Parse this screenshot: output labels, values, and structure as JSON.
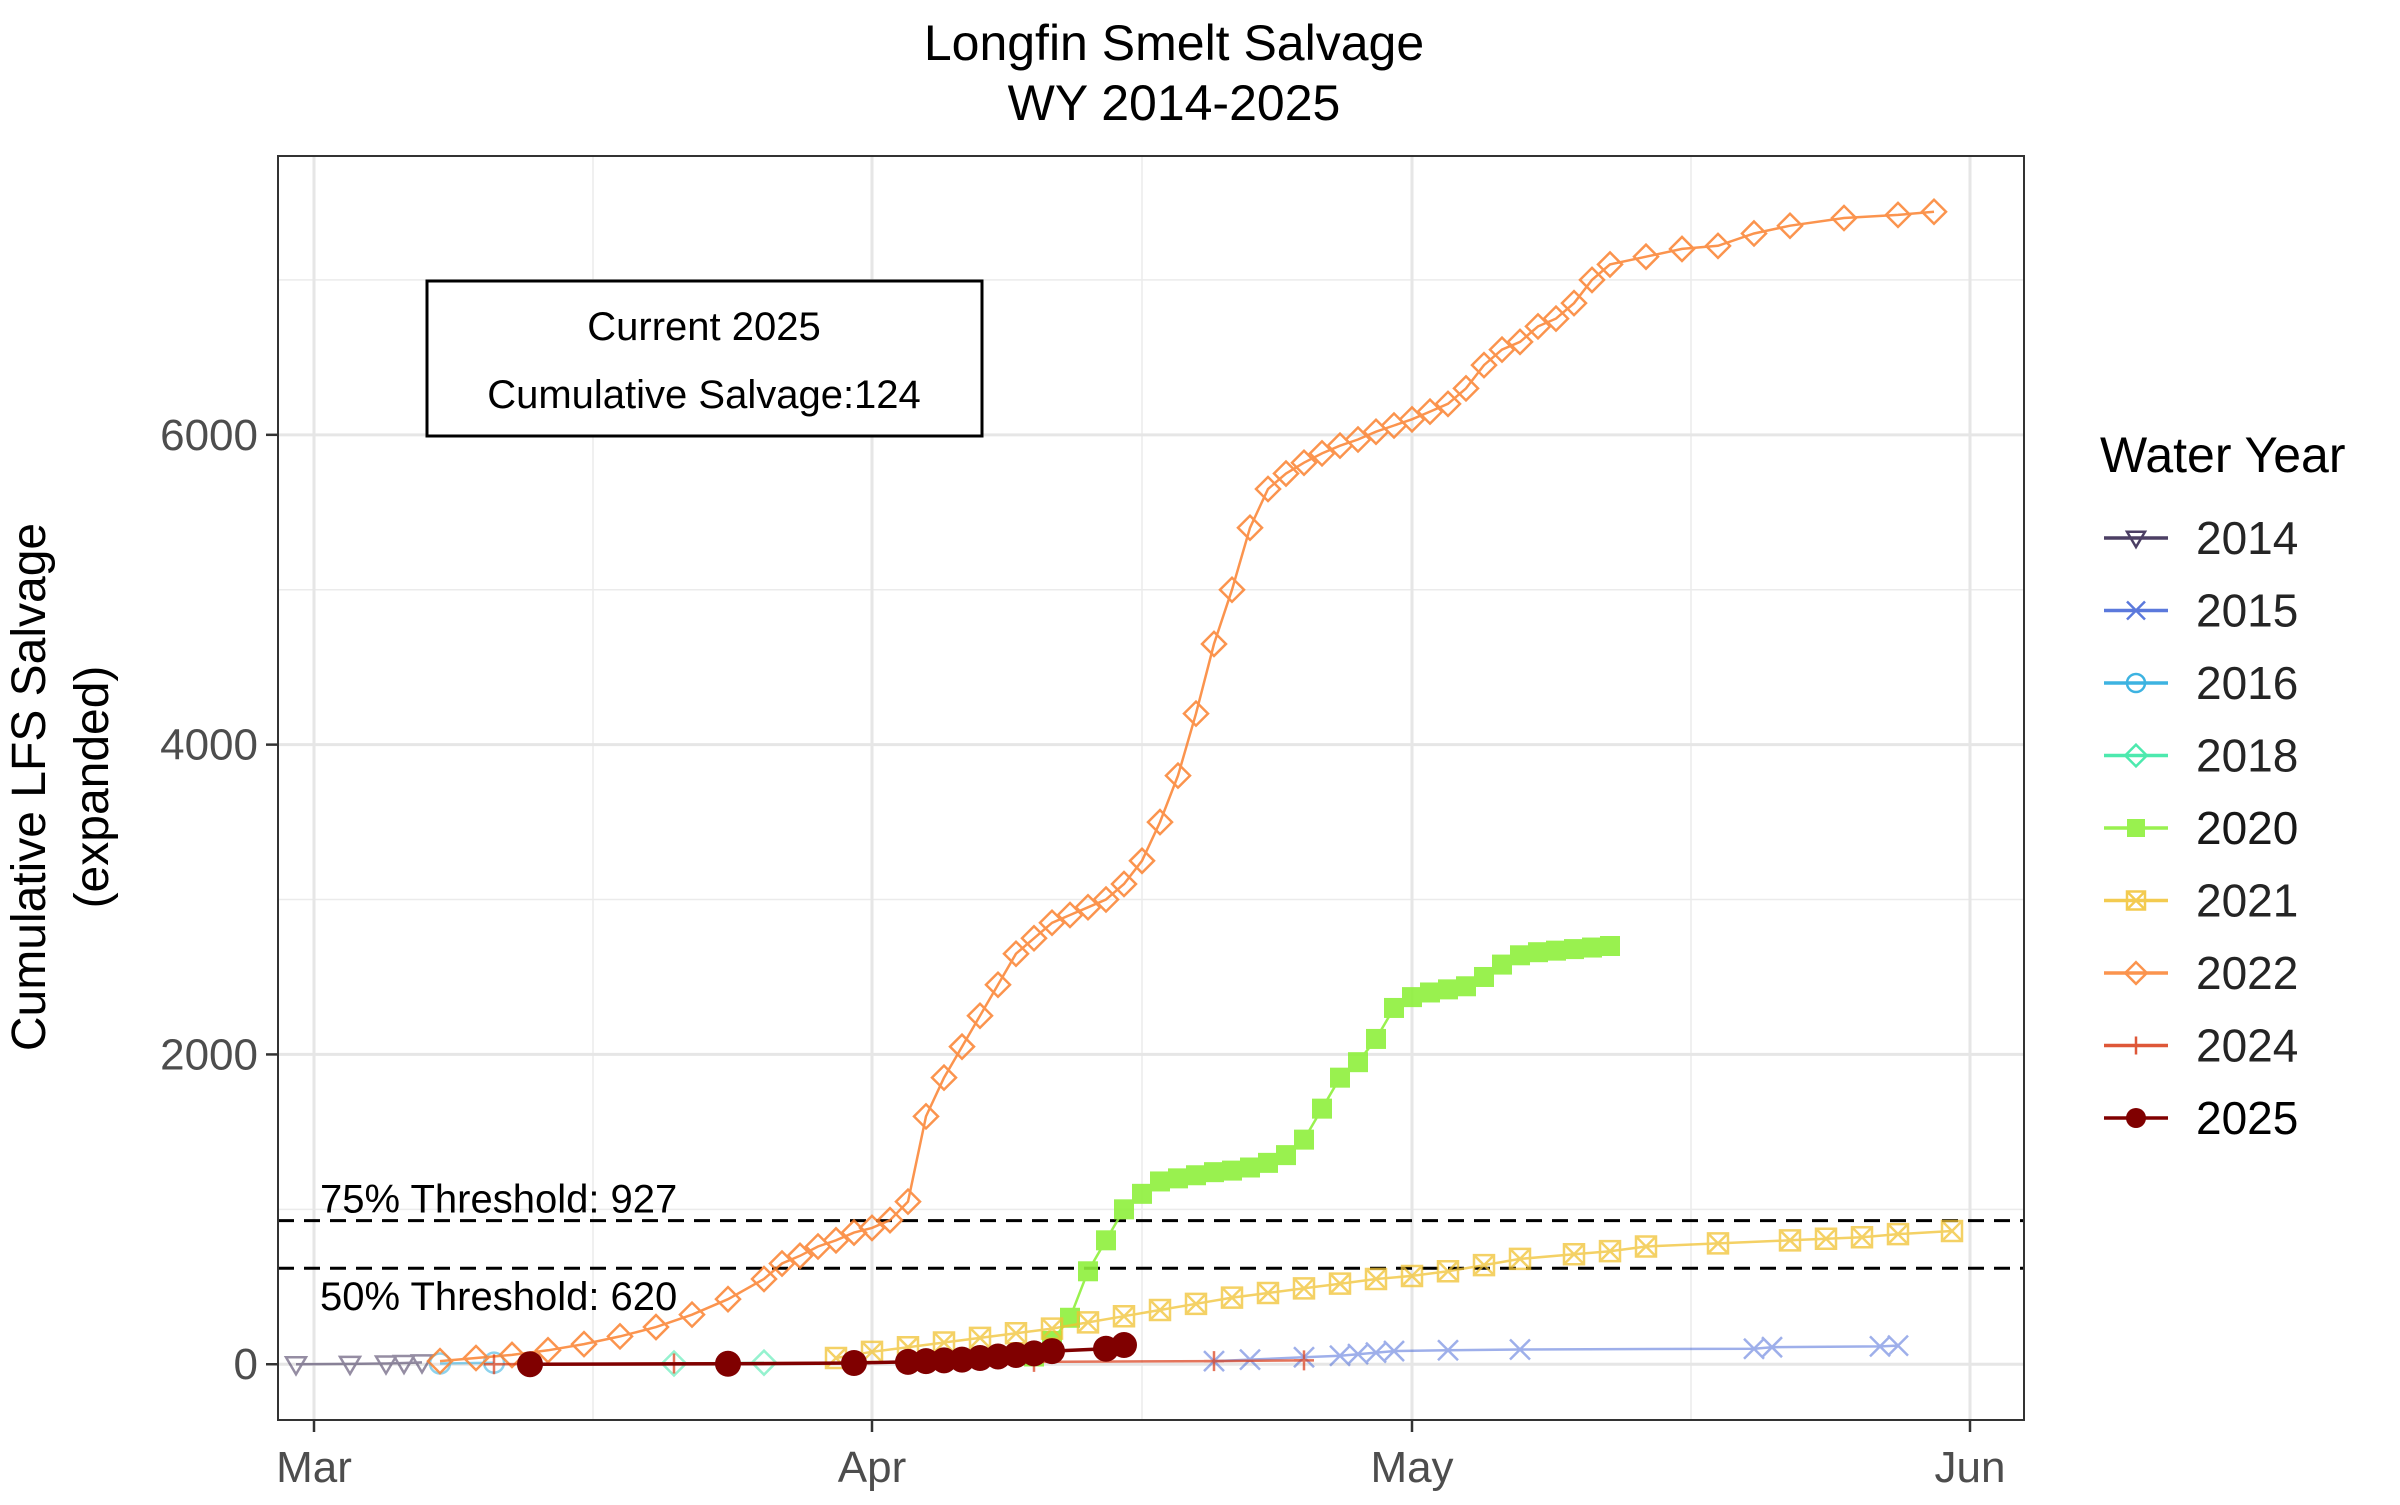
{
  "chart_data": {
    "type": "line",
    "title": "Longfin Smelt Salvage",
    "subtitle": "WY 2014-2025",
    "ylabel_line1": "Cumulative LFS Salvage",
    "ylabel_line2": "(expanded)",
    "xlim": [
      -2,
      95
    ],
    "ylim": [
      -360,
      7800
    ],
    "x_ticks": [
      {
        "label": "Mar",
        "value": 0
      },
      {
        "label": "Apr",
        "value": 31
      },
      {
        "label": "May",
        "value": 61
      },
      {
        "label": "Jun",
        "value": 92
      }
    ],
    "y_ticks": [
      {
        "label": "0",
        "value": 0
      },
      {
        "label": "2000",
        "value": 2000
      },
      {
        "label": "4000",
        "value": 4000
      },
      {
        "label": "6000",
        "value": 6000
      }
    ],
    "grid": true,
    "legend": {
      "title": "Water Year",
      "placement": "right"
    },
    "info_box": {
      "line1": "Current 2025",
      "line2": "Cumulative Salvage:124"
    },
    "thresholds": [
      {
        "value": 927,
        "label": "75% Threshold: 927"
      },
      {
        "value": 620,
        "label": "50% Threshold: 620"
      }
    ],
    "series": [
      {
        "name": "2014",
        "color": "#2d1e4a",
        "marker": "triangle-down",
        "opacity": 0.5,
        "x": [
          -1,
          2,
          4,
          5,
          6
        ],
        "y": [
          0,
          2,
          5,
          8,
          12
        ]
      },
      {
        "name": "2015",
        "color": "#3f62d6",
        "marker": "x",
        "opacity": 0.5,
        "x": [
          50,
          52,
          55,
          57,
          58,
          59,
          60,
          63,
          67,
          80,
          81,
          87,
          88
        ],
        "y": [
          20,
          30,
          45,
          55,
          65,
          75,
          85,
          90,
          95,
          100,
          110,
          115,
          120
        ]
      },
      {
        "name": "2016",
        "color": "#1ca6dc",
        "marker": "circle-open",
        "opacity": 0.5,
        "x": [
          7,
          10
        ],
        "y": [
          5,
          10
        ]
      },
      {
        "name": "2018",
        "color": "#2ee6a0",
        "marker": "diamond-open",
        "opacity": 0.5,
        "x": [
          20,
          25
        ],
        "y": [
          5,
          10
        ]
      },
      {
        "name": "2020",
        "color": "#8ef03c",
        "marker": "square",
        "opacity": 0.9,
        "x": [
          40,
          41,
          42,
          43,
          44,
          45,
          46,
          47,
          48,
          49,
          50,
          51,
          52,
          53,
          54,
          55,
          56,
          57,
          58,
          59,
          60,
          61,
          62,
          63,
          64,
          65,
          66,
          67,
          68,
          69,
          70,
          71,
          72
        ],
        "y": [
          50,
          150,
          300,
          600,
          800,
          1000,
          1100,
          1180,
          1200,
          1220,
          1240,
          1250,
          1270,
          1300,
          1350,
          1450,
          1650,
          1850,
          1950,
          2100,
          2300,
          2370,
          2400,
          2420,
          2440,
          2500,
          2580,
          2640,
          2660,
          2670,
          2680,
          2690,
          2700
        ]
      },
      {
        "name": "2021",
        "color": "#f1c232",
        "marker": "square-x",
        "opacity": 0.75,
        "x": [
          29,
          31,
          33,
          35,
          37,
          39,
          41,
          43,
          45,
          47,
          49,
          51,
          53,
          55,
          57,
          59,
          61,
          63,
          65,
          67,
          70,
          72,
          74,
          78,
          82,
          84,
          86,
          88,
          91
        ],
        "y": [
          40,
          80,
          110,
          140,
          170,
          200,
          230,
          270,
          310,
          350,
          390,
          430,
          460,
          490,
          520,
          550,
          570,
          600,
          640,
          680,
          710,
          730,
          760,
          780,
          800,
          810,
          820,
          840,
          860
        ]
      },
      {
        "name": "2022",
        "color": "#fb8230",
        "marker": "diamond-open",
        "opacity": 0.85,
        "x": [
          7,
          9,
          11,
          13,
          15,
          17,
          19,
          21,
          23,
          25,
          26,
          27,
          28,
          29,
          30,
          31,
          32,
          33,
          34,
          35,
          36,
          37,
          38,
          39,
          40,
          41,
          42,
          43,
          44,
          45,
          46,
          47,
          48,
          49,
          50,
          51,
          52,
          53,
          54,
          55,
          56,
          57,
          58,
          59,
          60,
          61,
          62,
          63,
          64,
          65,
          66,
          67,
          68,
          69,
          70,
          71,
          72,
          74,
          76,
          78,
          80,
          82,
          85,
          88,
          90
        ],
        "y": [
          20,
          40,
          60,
          90,
          130,
          180,
          240,
          320,
          420,
          550,
          650,
          700,
          760,
          800,
          850,
          880,
          930,
          1050,
          1600,
          1850,
          2050,
          2250,
          2450,
          2650,
          2750,
          2850,
          2900,
          2950,
          3000,
          3100,
          3250,
          3500,
          3800,
          4200,
          4650,
          5000,
          5400,
          5650,
          5750,
          5820,
          5880,
          5930,
          5970,
          6020,
          6060,
          6100,
          6150,
          6200,
          6300,
          6450,
          6550,
          6600,
          6700,
          6750,
          6850,
          7000,
          7100,
          7150,
          7200,
          7220,
          7300,
          7350,
          7400,
          7420,
          7440
        ]
      },
      {
        "name": "2024",
        "color": "#d93a16",
        "marker": "plus",
        "opacity": 0.7,
        "x": [
          10,
          20,
          30,
          40,
          50,
          55
        ],
        "y": [
          0,
          5,
          10,
          15,
          20,
          25
        ]
      },
      {
        "name": "2025",
        "color": "#800000",
        "marker": "circle",
        "opacity": 1,
        "x": [
          12,
          23,
          30,
          33,
          34,
          35,
          36,
          37,
          38,
          39,
          40,
          41,
          44,
          45
        ],
        "y": [
          0,
          3,
          8,
          15,
          20,
          25,
          30,
          40,
          50,
          60,
          70,
          85,
          100,
          124
        ]
      }
    ]
  }
}
